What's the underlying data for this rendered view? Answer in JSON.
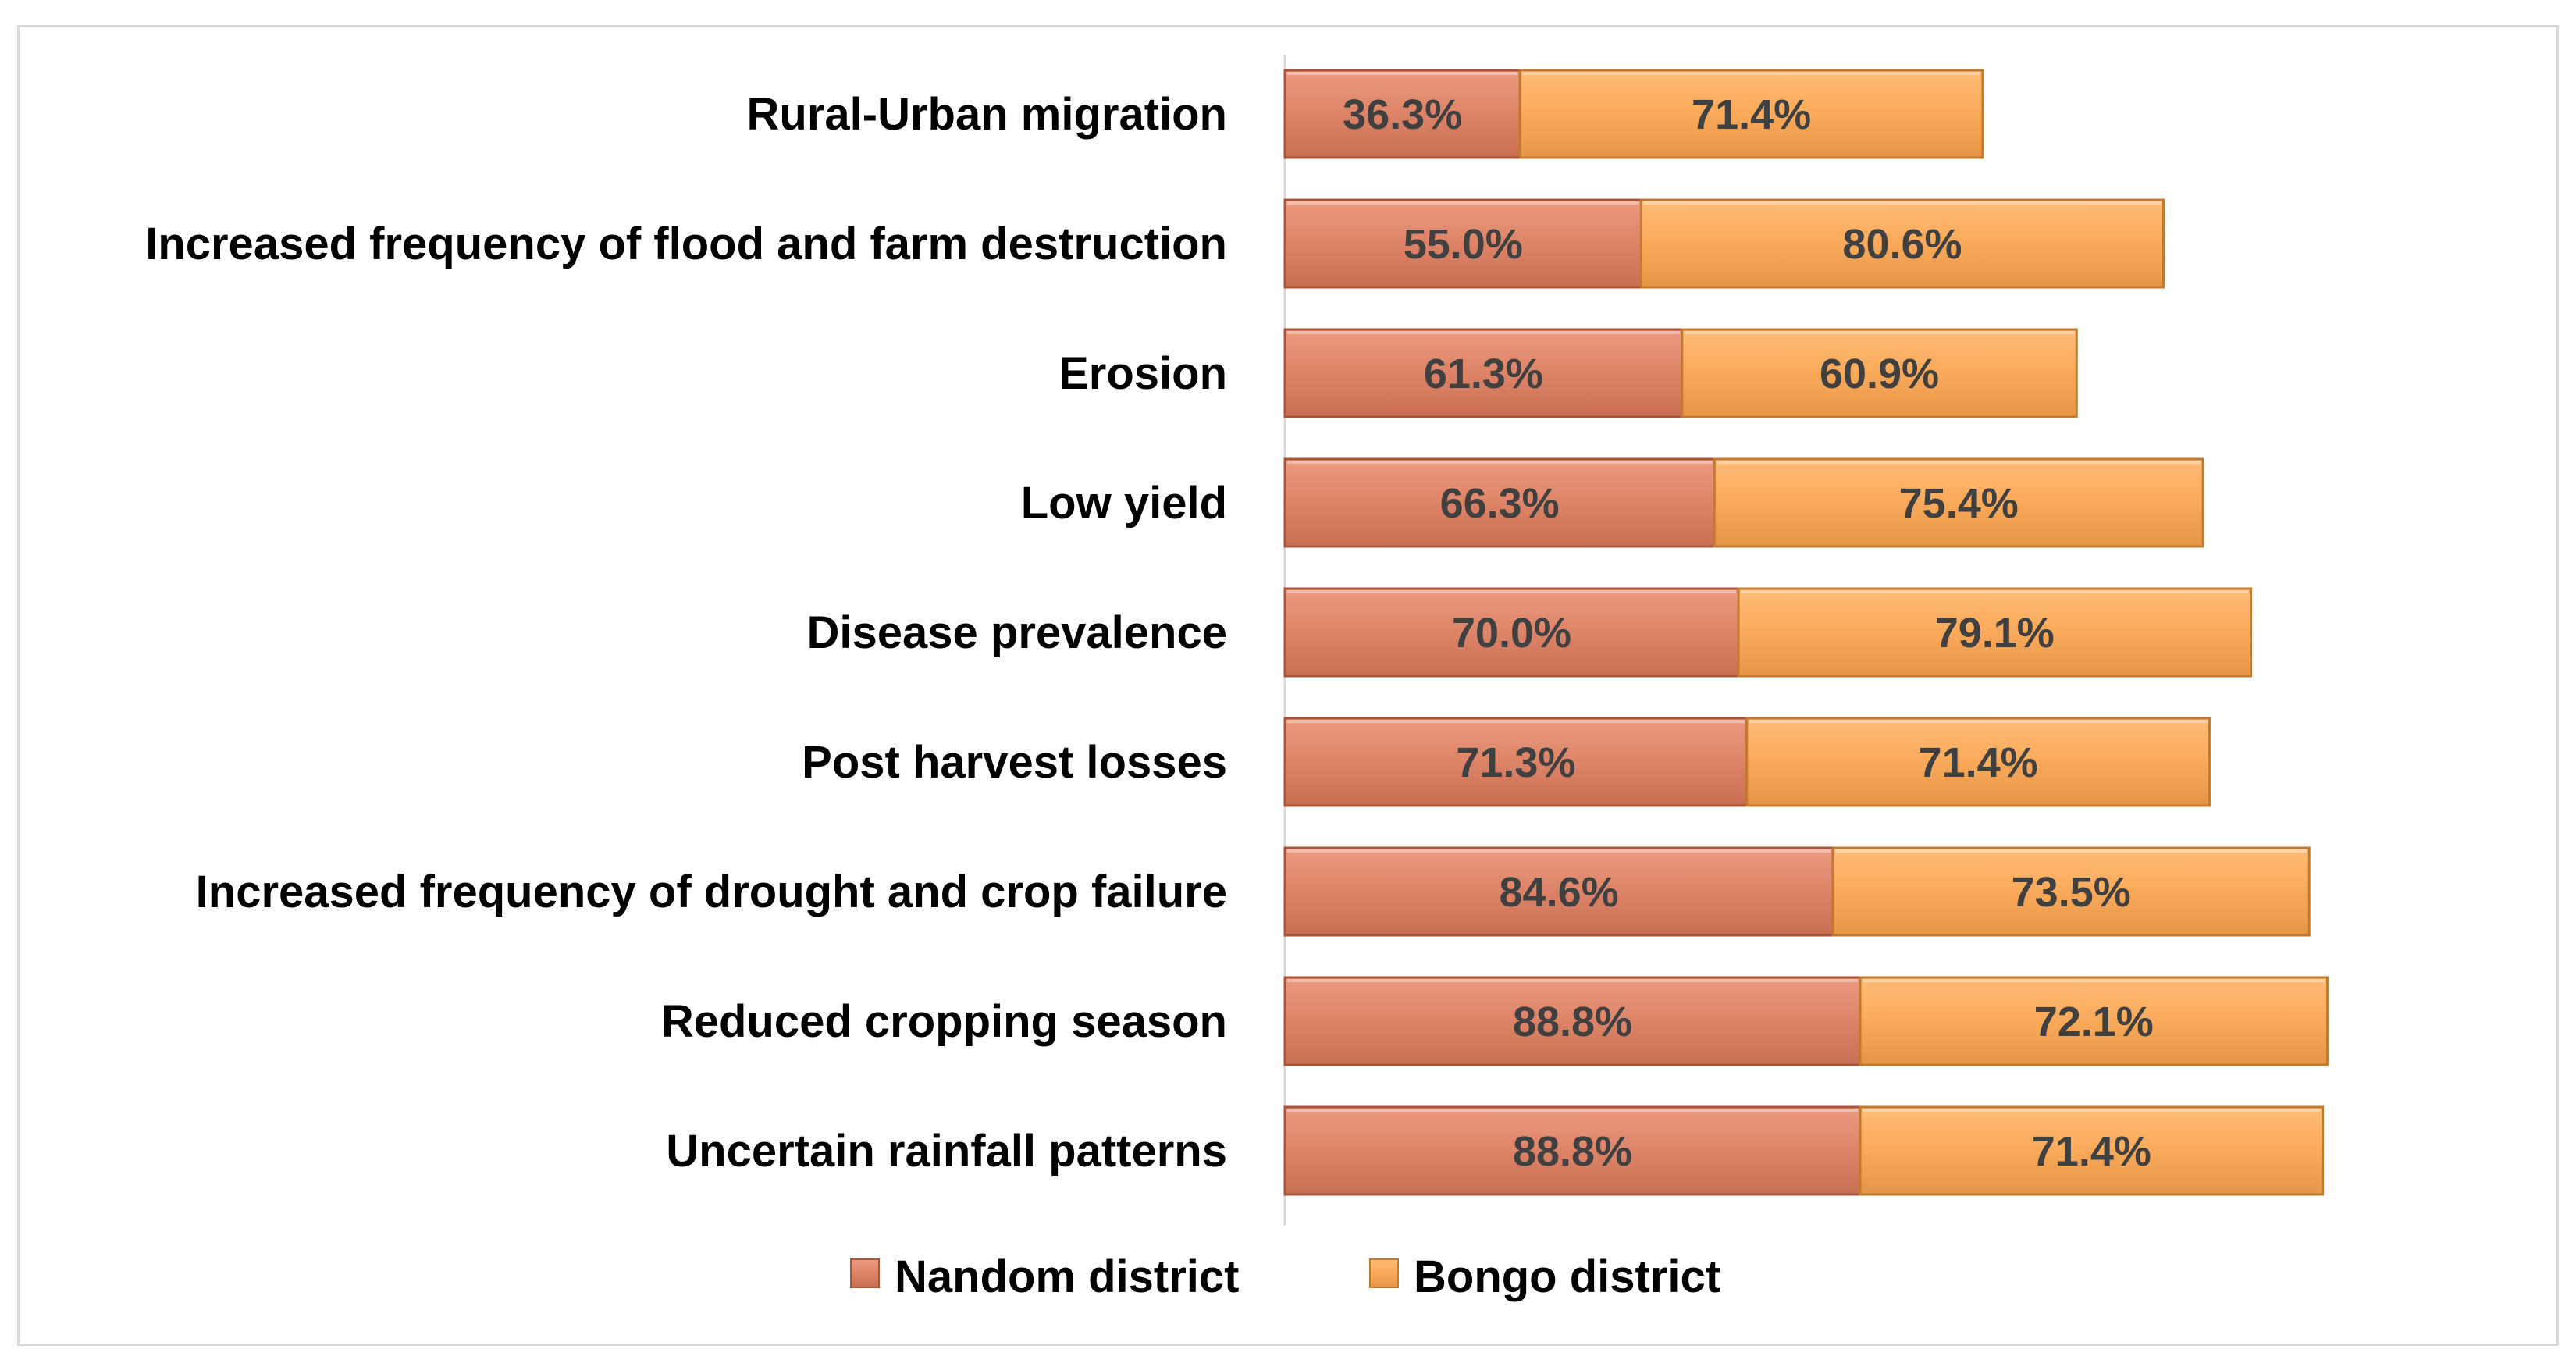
{
  "chart_data": {
    "type": "bar",
    "orientation": "horizontal",
    "stacked": true,
    "title": "",
    "xlabel": "",
    "ylabel": "",
    "categories": [
      "Rural-Urban migration",
      "Increased frequency of flood and farm destruction",
      "Erosion",
      "Low yield",
      "Disease prevalence",
      "Post harvest losses",
      "Increased frequency of drought and crop failure",
      "Reduced cropping season",
      "Uncertain rainfall patterns"
    ],
    "series": [
      {
        "name": "Nandom district",
        "color": "#e0866a",
        "values": [
          36.3,
          55.0,
          61.3,
          66.3,
          70.0,
          71.3,
          84.6,
          88.8,
          88.8
        ],
        "labels": [
          "36.3%",
          "55.0%",
          "61.3%",
          "66.3%",
          "70.0%",
          "71.3%",
          "84.6%",
          "88.8%",
          "88.8%"
        ]
      },
      {
        "name": "Bongo district",
        "color": "#fbab5c",
        "values": [
          71.4,
          80.6,
          60.9,
          75.4,
          79.1,
          71.4,
          73.5,
          72.1,
          71.4
        ],
        "labels": [
          "71.4%",
          "80.6%",
          "60.9%",
          "75.4%",
          "79.1%",
          "71.4%",
          "73.5%",
          "72.1%",
          "71.4%"
        ]
      }
    ],
    "xlim": [
      0,
      180
    ],
    "grid": false,
    "legend_position": "bottom"
  }
}
